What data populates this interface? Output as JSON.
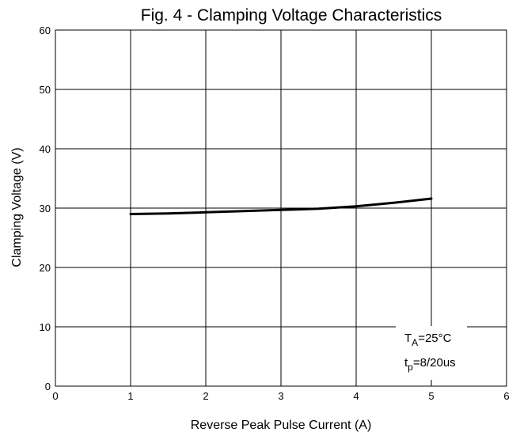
{
  "chart_data": {
    "type": "line",
    "title": "Fig. 4 - Clamping Voltage Characteristics",
    "xlabel": "Reverse Peak Pulse Current (A)",
    "ylabel": "Clamping Voltage (V)",
    "xlim": [
      0,
      6
    ],
    "ylim": [
      0,
      60
    ],
    "xticks": [
      "0",
      "1",
      "2",
      "3",
      "4",
      "5",
      "6"
    ],
    "yticks": [
      "0",
      "10",
      "20",
      "30",
      "40",
      "50",
      "60"
    ],
    "grid": true,
    "series": [
      {
        "x": [
          1,
          1.5,
          2,
          2.5,
          3,
          3.5,
          4,
          4.5,
          5
        ],
        "y": [
          29.0,
          29.1,
          29.3,
          29.5,
          29.7,
          29.9,
          30.3,
          30.9,
          31.6
        ]
      }
    ],
    "annotations": {
      "temp_main": "T",
      "temp_sub": "A",
      "temp_rest": "=25°C",
      "pulse_main": "t",
      "pulse_sub": "p",
      "pulse_rest": "=8/20us"
    }
  }
}
